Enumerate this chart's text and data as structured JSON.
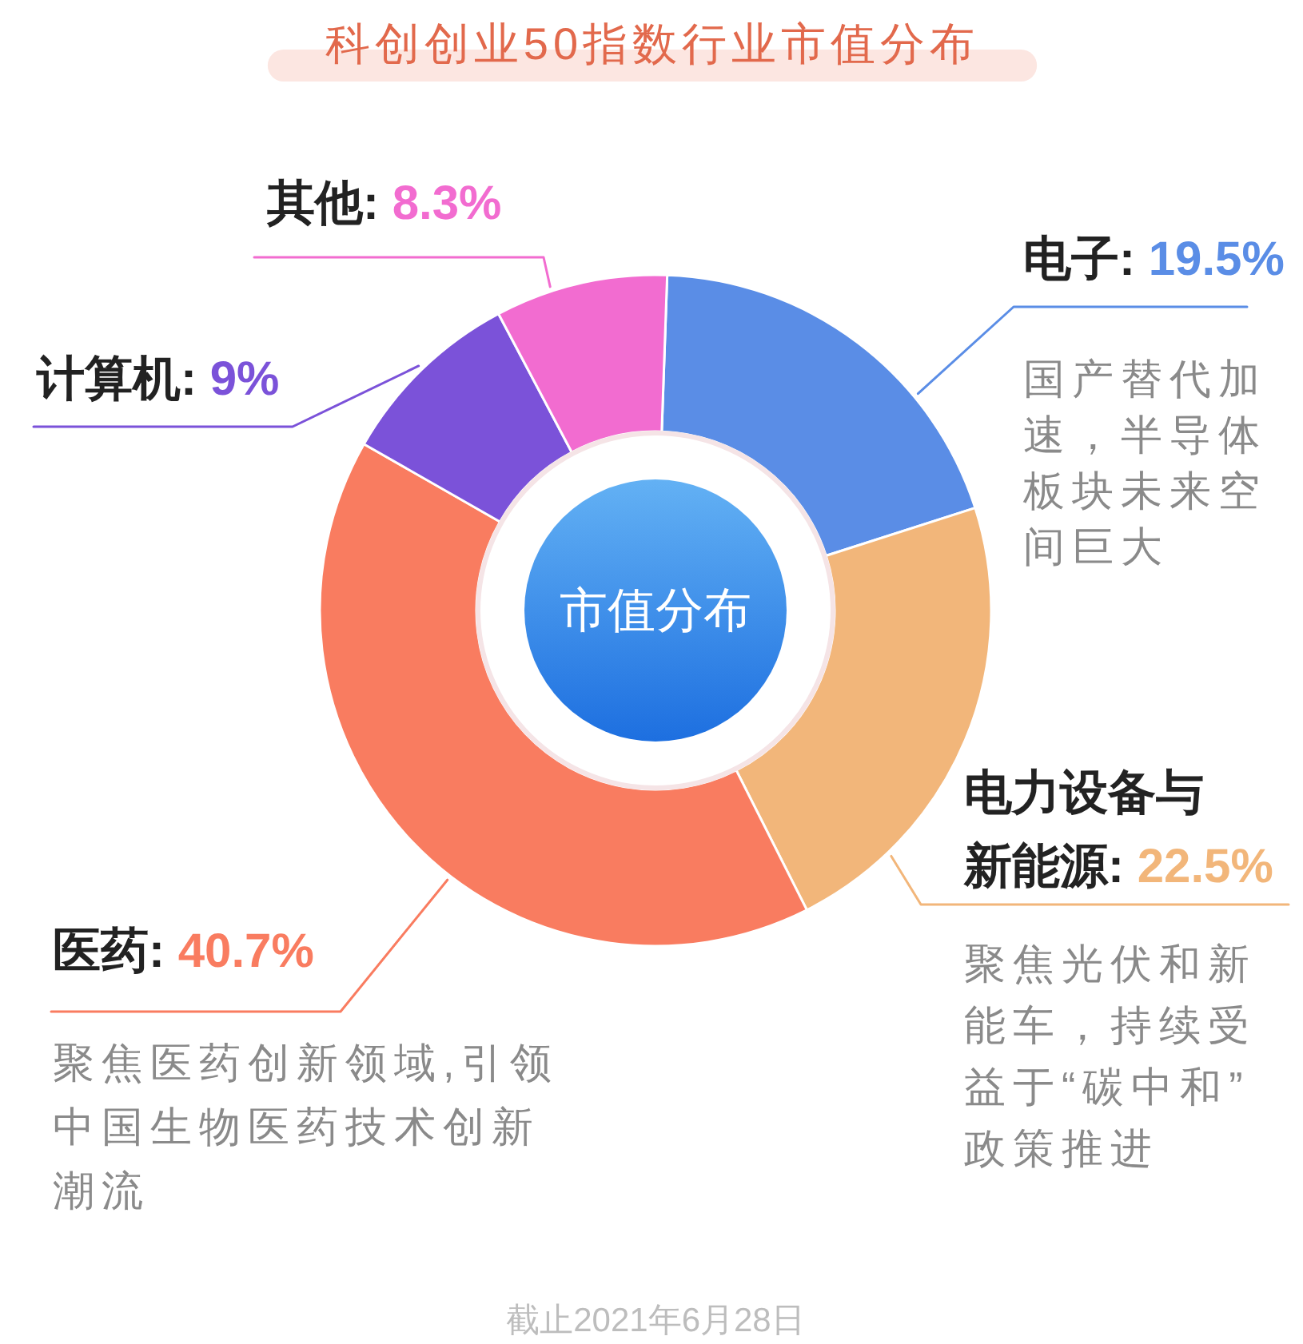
{
  "chart_data": {
    "type": "donut",
    "title": "科创创业50指数行业市值分布",
    "categories": [
      "电子",
      "电力设备与新能源",
      "医药",
      "计算机",
      "其他"
    ],
    "values": [
      19.5,
      22.5,
      40.7,
      9,
      8.3
    ],
    "colors": [
      "#5a8de6",
      "#f2b67a",
      "#f97c60",
      "#7b52d9",
      "#f26cd0"
    ],
    "value_labels": [
      "19.5%",
      "22.5%",
      "40.7%",
      "9%",
      "8.3%"
    ],
    "annotations": [
      "市值分布",
      "国产替代加速，半导体板块未来空间巨大",
      "聚焦光伏和新能车，持续受益于“碳中和”政策推进",
      "聚焦医药创新领域,引领中国生物医药技术创新潮流",
      "截止2021年6月28日"
    ]
  }
}
